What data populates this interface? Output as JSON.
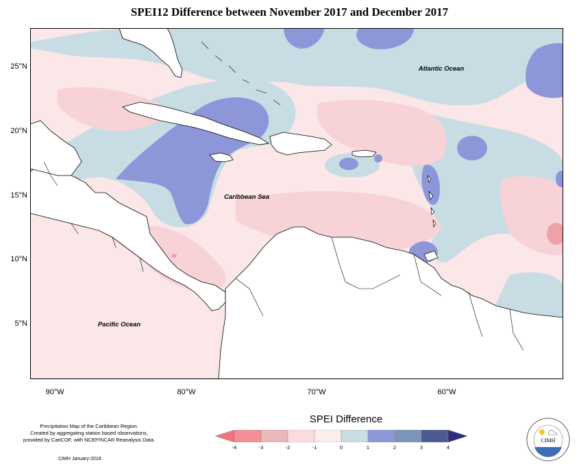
{
  "title": "SPEI12 Difference between November 2017 and December 2017",
  "map": {
    "ocean_labels": {
      "atlantic": "Atlantic Ocean",
      "caribbean": "Caribbean Sea",
      "pacific": "Pacific Ocean"
    }
  },
  "axes": {
    "x_ticks": [
      "90°W",
      "80°W",
      "70°W",
      "60°W"
    ],
    "y_ticks": [
      "25°N",
      "20°N",
      "15°N",
      "10°N",
      "5°N"
    ]
  },
  "legend": {
    "title": "SPEI Difference",
    "labels": [
      "-4",
      "-3",
      "-2",
      "-1",
      "0",
      "1",
      "2",
      "3",
      "4"
    ],
    "colors": [
      "#f0737f",
      "#ebb8ba",
      "#fbdcdf",
      "#fdeeee",
      "#c9dde3",
      "#8d96d8",
      "#7b94b8",
      "#4e5a92",
      "#2d2d7e"
    ]
  },
  "footer": {
    "lines": [
      "Precipitation Map of the Caribbean Region.",
      "Created by aggregating station based observations,",
      "provided by CariCOF, with NCEP/NCAR Reanalysis Data."
    ],
    "date": "CIMH January-2018"
  },
  "logo": {
    "text": "CIMH"
  }
}
